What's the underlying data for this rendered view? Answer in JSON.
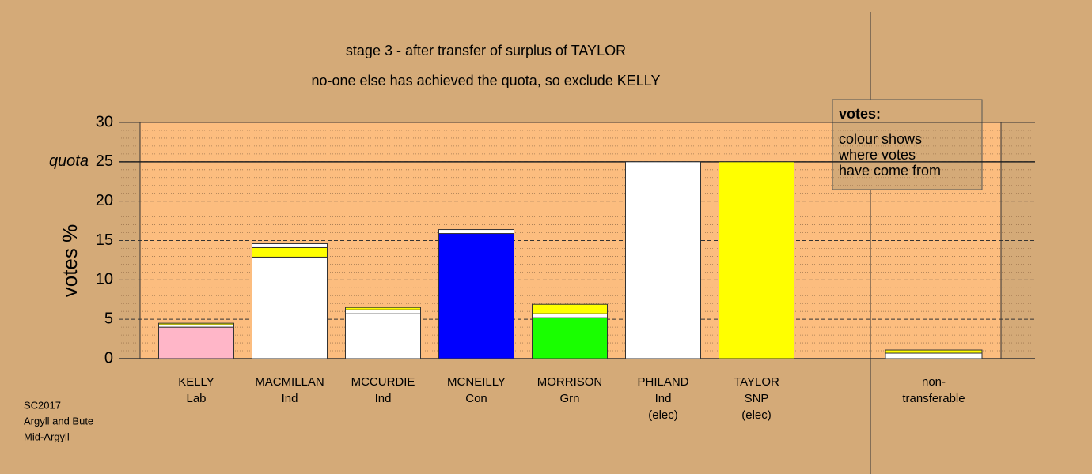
{
  "chart_data": {
    "type": "stacked-bar",
    "title": "stage 3 - after transfer of surplus of TAYLOR",
    "subtitle": "no-one else has achieved the quota, so exclude KELLY",
    "y_label": "votes %",
    "categories": [
      [
        "KELLY",
        "Lab"
      ],
      [
        "MACMILLAN",
        "Ind"
      ],
      [
        "MCCURDIE",
        "Ind"
      ],
      [
        "MCNEILLY",
        "Con"
      ],
      [
        "MORRISON",
        "Grn"
      ],
      [
        "PHILAND",
        "Ind",
        "(elec)"
      ],
      [
        "TAYLOR",
        "SNP",
        "(elec)"
      ],
      null,
      [
        "non-",
        "transferable"
      ]
    ],
    "series": [
      {
        "colors": [
          "#ffb6c8",
          "#ffffff",
          "#ffffff",
          "#0000ff",
          "#19ff00",
          "#ffffff",
          "#ffff00",
          null,
          "#ffffff"
        ],
        "values": [
          4.0,
          12.9,
          5.7,
          15.9,
          5.2,
          25,
          25,
          null,
          0.7
        ]
      },
      {
        "colors": [
          "#ffffff",
          "#ffff00",
          "#ffffff",
          "#ffffff",
          "#ffffff",
          null,
          null,
          null,
          "#ffff00"
        ],
        "values": [
          0.3,
          1.2,
          0.5,
          0.5,
          0.5,
          null,
          null,
          null,
          0.4
        ]
      },
      {
        "colors": [
          "#ffff00",
          "#ffffff",
          "#ffff00",
          null,
          "#ffff00",
          null,
          null,
          null,
          null
        ],
        "values": [
          0.2,
          0.5,
          0.3,
          null,
          1.2,
          null,
          null,
          null,
          null
        ]
      }
    ],
    "ylim": [
      0,
      30
    ],
    "yticks": [
      0,
      5,
      10,
      15,
      20,
      25,
      30
    ],
    "quota": {
      "value": 25,
      "label": "quota"
    },
    "legend": {
      "title": "votes:",
      "lines": [
        "colour shows",
        "where votes",
        "have come from"
      ]
    },
    "footnote": [
      "SC2017",
      "Argyll and Bute",
      "Mid-Argyll"
    ]
  }
}
